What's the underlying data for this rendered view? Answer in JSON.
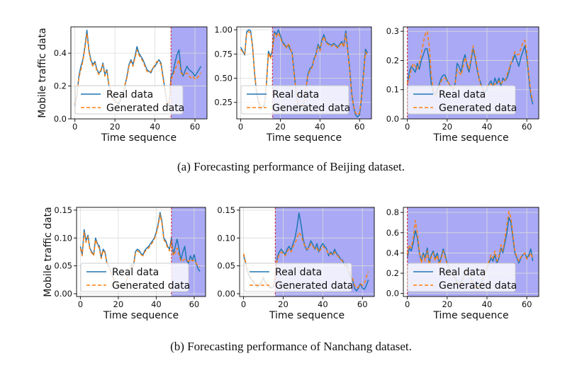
{
  "captions": {
    "a": "(a)  Forecasting performance of Beijing dataset.",
    "b": "(b)  Forecasting performance of Nanchang dataset."
  },
  "colors": {
    "real": "#1f77b4",
    "generated": "#ff7f0e",
    "shade": "#a9a9f5",
    "split_line": "#d62728",
    "grid": "#dcdcdc"
  },
  "chart_data": [
    {
      "type": "line",
      "row": "a",
      "col": 0,
      "xlabel": "Time sequence",
      "ylabel": "Mobile traffic data",
      "xlim": [
        -2,
        66
      ],
      "ylim": [
        0,
        0.56
      ],
      "xticks": [
        0,
        20,
        40,
        60
      ],
      "yticks": [
        0.0,
        0.2,
        0.4
      ],
      "ytick_labels": [
        "0.0",
        "0.2",
        "0.4"
      ],
      "split_x": 48,
      "shade_from": 48,
      "grid": true,
      "legend": "lower-left",
      "series": [
        {
          "name": "Real data",
          "values": [
            0.08,
            0.14,
            0.26,
            0.32,
            0.36,
            0.44,
            0.54,
            0.42,
            0.36,
            0.33,
            0.35,
            0.3,
            0.28,
            0.29,
            0.34,
            0.27,
            0.3,
            0.2,
            0.17,
            0.14,
            0.11,
            0.1,
            0.09,
            0.12,
            0.14,
            0.2,
            0.26,
            0.33,
            0.36,
            0.33,
            0.38,
            0.44,
            0.4,
            0.38,
            0.36,
            0.33,
            0.3,
            0.29,
            0.28,
            0.31,
            0.32,
            0.34,
            0.36,
            0.34,
            0.26,
            0.18,
            0.1,
            0.08,
            0.26,
            0.28,
            0.34,
            0.39,
            0.42,
            0.3,
            0.26,
            0.29,
            0.32,
            0.3,
            0.29,
            0.28,
            0.26,
            0.28,
            0.3,
            0.32
          ]
        },
        {
          "name": "Generated data",
          "values": [
            0.09,
            0.15,
            0.25,
            0.3,
            0.35,
            0.43,
            0.52,
            0.41,
            0.35,
            0.32,
            0.34,
            0.29,
            0.27,
            0.3,
            0.33,
            0.26,
            0.29,
            0.21,
            0.17,
            0.13,
            0.1,
            0.1,
            0.1,
            0.13,
            0.15,
            0.21,
            0.25,
            0.32,
            0.35,
            0.32,
            0.37,
            0.42,
            0.39,
            0.37,
            0.35,
            0.32,
            0.29,
            0.28,
            0.29,
            0.31,
            0.33,
            0.35,
            0.35,
            0.33,
            0.25,
            0.17,
            0.1,
            0.09,
            0.24,
            0.26,
            0.3,
            0.33,
            0.36,
            0.28,
            0.27,
            0.27,
            0.28,
            0.26,
            0.25,
            0.26,
            0.24,
            0.25,
            0.26,
            0.28
          ]
        }
      ]
    },
    {
      "type": "line",
      "row": "a",
      "col": 1,
      "xlabel": "Time sequence",
      "ylabel": "",
      "xlim": [
        -2,
        66
      ],
      "ylim": [
        0.08,
        1.03
      ],
      "xticks": [
        0,
        20,
        40,
        60
      ],
      "yticks": [
        0.25,
        0.5,
        0.75,
        1.0
      ],
      "ytick_labels": [
        "0.25",
        "0.50",
        "0.75",
        "1.00"
      ],
      "split_x": 16,
      "shade_from": 16,
      "grid": true,
      "legend": "lower-left",
      "series": [
        {
          "name": "Real data",
          "values": [
            0.82,
            0.78,
            0.74,
            0.98,
            1.0,
            0.99,
            0.82,
            0.55,
            0.35,
            0.25,
            0.18,
            0.2,
            0.22,
            0.45,
            0.78,
            0.72,
            0.8,
            0.98,
            0.95,
            1.0,
            0.94,
            0.88,
            0.85,
            0.82,
            0.84,
            0.8,
            0.76,
            0.55,
            0.35,
            0.22,
            0.18,
            0.2,
            0.25,
            0.4,
            0.55,
            0.6,
            0.62,
            0.7,
            0.75,
            0.85,
            0.8,
            0.9,
            0.95,
            0.88,
            0.86,
            0.85,
            0.84,
            0.86,
            0.84,
            0.82,
            0.85,
            0.88,
            0.83,
            0.99,
            0.8,
            0.6,
            0.35,
            0.2,
            0.12,
            0.1,
            0.12,
            0.3,
            0.55,
            0.8,
            0.76
          ]
        },
        {
          "name": "Generated data",
          "values": [
            0.8,
            0.77,
            0.75,
            0.96,
            0.98,
            0.97,
            0.81,
            0.56,
            0.37,
            0.27,
            0.2,
            0.21,
            0.23,
            0.44,
            0.76,
            0.7,
            0.78,
            0.96,
            0.93,
            0.97,
            0.92,
            0.86,
            0.84,
            0.81,
            0.86,
            0.82,
            0.74,
            0.54,
            0.36,
            0.24,
            0.19,
            0.21,
            0.26,
            0.41,
            0.54,
            0.58,
            0.61,
            0.69,
            0.74,
            0.83,
            0.78,
            0.88,
            0.93,
            0.87,
            0.85,
            0.84,
            0.83,
            0.85,
            0.83,
            0.81,
            0.84,
            0.87,
            0.82,
            0.96,
            0.78,
            0.58,
            0.34,
            0.21,
            0.14,
            0.12,
            0.14,
            0.31,
            0.52,
            0.77,
            0.74
          ]
        }
      ]
    },
    {
      "type": "line",
      "row": "a",
      "col": 2,
      "xlabel": "Time sequence",
      "ylabel": "",
      "xlim": [
        -2,
        66
      ],
      "ylim": [
        0,
        0.315
      ],
      "xticks": [
        0,
        20,
        40,
        60
      ],
      "yticks": [
        0.0,
        0.1,
        0.2,
        0.3
      ],
      "ytick_labels": [
        "0.0",
        "0.1",
        "0.2",
        "0.3"
      ],
      "split_x": 0,
      "shade_from": 0,
      "grid": true,
      "legend": "lower-left",
      "series": [
        {
          "name": "Real data",
          "values": [
            0.12,
            0.16,
            0.18,
            0.17,
            0.16,
            0.19,
            0.17,
            0.2,
            0.22,
            0.24,
            0.24,
            0.2,
            0.12,
            0.09,
            0.08,
            0.1,
            0.12,
            0.14,
            0.15,
            0.15,
            0.13,
            0.12,
            0.11,
            0.1,
            0.12,
            0.19,
            0.18,
            0.16,
            0.2,
            0.22,
            0.18,
            0.16,
            0.2,
            0.24,
            0.21,
            0.17,
            0.14,
            0.12,
            0.1,
            0.09,
            0.1,
            0.12,
            0.13,
            0.11,
            0.14,
            0.12,
            0.14,
            0.11,
            0.14,
            0.13,
            0.14,
            0.16,
            0.19,
            0.2,
            0.22,
            0.2,
            0.18,
            0.21,
            0.23,
            0.25,
            0.21,
            0.14,
            0.08,
            0.05
          ]
        },
        {
          "name": "Generated data",
          "values": [
            0.12,
            0.14,
            0.17,
            0.19,
            0.18,
            0.17,
            0.19,
            0.22,
            0.26,
            0.29,
            0.3,
            0.25,
            0.15,
            0.1,
            0.08,
            0.09,
            0.11,
            0.13,
            0.14,
            0.14,
            0.13,
            0.12,
            0.11,
            0.1,
            0.12,
            0.17,
            0.16,
            0.15,
            0.18,
            0.21,
            0.19,
            0.17,
            0.21,
            0.25,
            0.22,
            0.18,
            0.14,
            0.11,
            0.1,
            0.1,
            0.11,
            0.12,
            0.12,
            0.11,
            0.12,
            0.12,
            0.13,
            0.12,
            0.13,
            0.13,
            0.15,
            0.17,
            0.19,
            0.21,
            0.23,
            0.22,
            0.22,
            0.24,
            0.26,
            0.27,
            0.23,
            0.15,
            0.09,
            0.06
          ]
        }
      ]
    },
    {
      "type": "line",
      "row": "b",
      "col": 0,
      "xlabel": "Time sequence",
      "ylabel": "Mobile traffic data",
      "xlim": [
        -2,
        66
      ],
      "ylim": [
        -0.005,
        0.155
      ],
      "xticks": [
        0,
        20,
        40,
        60
      ],
      "yticks": [
        0.0,
        0.05,
        0.1,
        0.15
      ],
      "ytick_labels": [
        "0.00",
        "0.05",
        "0.10",
        "0.15"
      ],
      "split_x": 48,
      "shade_from": 48,
      "grid": true,
      "legend": "lower-left",
      "series": [
        {
          "name": "Real data",
          "values": [
            0.085,
            0.07,
            0.115,
            0.095,
            0.105,
            0.082,
            0.075,
            0.07,
            0.1,
            0.09,
            0.085,
            0.065,
            0.08,
            0.075,
            0.055,
            0.05,
            0.04,
            0.03,
            0.022,
            0.018,
            0.015,
            0.012,
            0.01,
            0.015,
            0.02,
            0.03,
            0.04,
            0.052,
            0.05,
            0.075,
            0.08,
            0.078,
            0.072,
            0.07,
            0.078,
            0.082,
            0.085,
            0.09,
            0.095,
            0.1,
            0.11,
            0.125,
            0.146,
            0.13,
            0.1,
            0.095,
            0.085,
            0.08,
            0.1,
            0.07,
            0.085,
            0.098,
            0.08,
            0.06,
            0.075,
            0.085,
            0.06,
            0.055,
            0.068,
            0.06,
            0.07,
            0.055,
            0.045,
            0.04
          ]
        },
        {
          "name": "Generated data",
          "values": [
            0.082,
            0.068,
            0.11,
            0.092,
            0.102,
            0.08,
            0.073,
            0.068,
            0.097,
            0.087,
            0.082,
            0.063,
            0.078,
            0.073,
            0.054,
            0.049,
            0.04,
            0.031,
            0.023,
            0.019,
            0.016,
            0.013,
            0.011,
            0.016,
            0.021,
            0.031,
            0.04,
            0.051,
            0.049,
            0.072,
            0.077,
            0.075,
            0.07,
            0.068,
            0.075,
            0.08,
            0.082,
            0.087,
            0.092,
            0.098,
            0.107,
            0.122,
            0.142,
            0.126,
            0.097,
            0.092,
            0.082,
            0.077,
            0.095,
            0.068,
            0.075,
            0.082,
            0.07,
            0.058,
            0.06,
            0.062,
            0.06,
            0.058,
            0.062,
            0.059,
            0.06,
            0.055,
            0.05,
            0.048
          ]
        }
      ]
    },
    {
      "type": "line",
      "row": "b",
      "col": 1,
      "xlabel": "Time sequence",
      "ylabel": "",
      "xlim": [
        -2,
        66
      ],
      "ylim": [
        -0.005,
        0.155
      ],
      "xticks": [
        0,
        20,
        40,
        60
      ],
      "yticks": [
        0.0,
        0.05,
        0.1,
        0.15
      ],
      "ytick_labels": [
        "0.00",
        "0.05",
        "0.10",
        "0.15"
      ],
      "split_x": 16,
      "shade_from": 16,
      "grid": true,
      "legend": "lower-left",
      "series": [
        {
          "name": "Real data",
          "values": [
            0.07,
            0.055,
            0.04,
            0.03,
            0.025,
            0.02,
            0.015,
            0.012,
            0.015,
            0.02,
            0.028,
            0.02,
            0.015,
            0.012,
            0.01,
            0.012,
            0.03,
            0.065,
            0.075,
            0.08,
            0.075,
            0.07,
            0.08,
            0.085,
            0.078,
            0.09,
            0.1,
            0.12,
            0.145,
            0.125,
            0.1,
            0.085,
            0.078,
            0.085,
            0.095,
            0.088,
            0.08,
            0.09,
            0.075,
            0.085,
            0.09,
            0.085,
            0.08,
            0.068,
            0.075,
            0.07,
            0.08,
            0.072,
            0.068,
            0.062,
            0.06,
            0.05,
            0.055,
            0.04,
            0.03,
            0.025,
            0.01,
            0.005,
            0.01,
            0.018,
            0.01,
            0.008,
            0.015,
            0.025
          ]
        },
        {
          "name": "Generated data",
          "values": [
            0.072,
            0.057,
            0.042,
            0.032,
            0.027,
            0.022,
            0.017,
            0.014,
            0.017,
            0.022,
            0.03,
            0.022,
            0.017,
            0.014,
            0.012,
            0.014,
            0.032,
            0.062,
            0.07,
            0.075,
            0.072,
            0.068,
            0.076,
            0.08,
            0.075,
            0.085,
            0.09,
            0.1,
            0.11,
            0.105,
            0.095,
            0.085,
            0.08,
            0.082,
            0.09,
            0.085,
            0.08,
            0.082,
            0.075,
            0.08,
            0.085,
            0.082,
            0.078,
            0.07,
            0.072,
            0.07,
            0.075,
            0.07,
            0.066,
            0.062,
            0.058,
            0.052,
            0.05,
            0.042,
            0.034,
            0.028,
            0.015,
            0.01,
            0.012,
            0.018,
            0.015,
            0.018,
            0.03,
            0.04
          ]
        }
      ]
    },
    {
      "type": "line",
      "row": "b",
      "col": 2,
      "xlabel": "Time sequence",
      "ylabel": "",
      "xlim": [
        -2,
        66
      ],
      "ylim": [
        -0.03,
        0.85
      ],
      "xticks": [
        0,
        20,
        40,
        60
      ],
      "yticks": [
        0.0,
        0.2,
        0.4,
        0.6,
        0.8
      ],
      "ytick_labels": [
        "0.0",
        "0.2",
        "0.4",
        "0.6",
        "0.8"
      ],
      "split_x": 0,
      "shade_from": 0,
      "grid": true,
      "legend": "lower-left",
      "series": [
        {
          "name": "Real data",
          "values": [
            0.35,
            0.45,
            0.42,
            0.5,
            0.62,
            0.55,
            0.4,
            0.32,
            0.4,
            0.35,
            0.45,
            0.3,
            0.38,
            0.42,
            0.35,
            0.4,
            0.3,
            0.36,
            0.44,
            0.38,
            0.3,
            0.25,
            0.2,
            0.18,
            0.15,
            0.12,
            0.1,
            0.12,
            0.15,
            0.2,
            0.25,
            0.2,
            0.15,
            0.1,
            0.08,
            0.05,
            0.08,
            0.1,
            0.15,
            0.2,
            0.25,
            0.3,
            0.35,
            0.32,
            0.38,
            0.3,
            0.35,
            0.45,
            0.4,
            0.5,
            0.6,
            0.75,
            0.7,
            0.55,
            0.4,
            0.35,
            0.3,
            0.35,
            0.38,
            0.4,
            0.35,
            0.38,
            0.44,
            0.32
          ]
        },
        {
          "name": "Generated data",
          "values": [
            0.38,
            0.48,
            0.45,
            0.55,
            0.72,
            0.6,
            0.42,
            0.3,
            0.38,
            0.32,
            0.42,
            0.28,
            0.36,
            0.4,
            0.32,
            0.38,
            0.28,
            0.34,
            0.42,
            0.36,
            0.28,
            0.24,
            0.19,
            0.17,
            0.14,
            0.11,
            0.09,
            0.11,
            0.14,
            0.19,
            0.24,
            0.19,
            0.14,
            0.09,
            0.07,
            0.04,
            0.07,
            0.09,
            0.14,
            0.2,
            0.26,
            0.32,
            0.38,
            0.35,
            0.42,
            0.32,
            0.36,
            0.48,
            0.42,
            0.55,
            0.68,
            0.81,
            0.75,
            0.58,
            0.42,
            0.36,
            0.32,
            0.36,
            0.38,
            0.4,
            0.34,
            0.36,
            0.4,
            0.34
          ]
        }
      ]
    }
  ]
}
